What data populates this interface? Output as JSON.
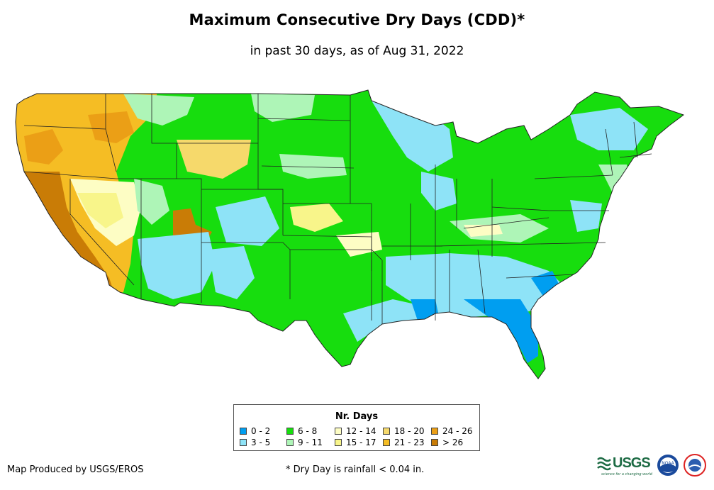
{
  "title": "Maximum Consecutive Dry Days (CDD)*",
  "subtitle": "in past 30 days, as of Aug 31, 2022",
  "legend": {
    "title": "Nr. Days",
    "items": [
      {
        "label": "0 - 2",
        "color": "#009ef0"
      },
      {
        "label": "3 - 5",
        "color": "#8ee3f7"
      },
      {
        "label": "6 - 8",
        "color": "#17dd0e"
      },
      {
        "label": "9 - 11",
        "color": "#aef5b7"
      },
      {
        "label": "12 - 14",
        "color": "#fdfdc4"
      },
      {
        "label": "15 - 17",
        "color": "#f8f58a"
      },
      {
        "label": "18 - 20",
        "color": "#f6d96b"
      },
      {
        "label": "21 - 23",
        "color": "#f5bd24"
      },
      {
        "label": "24 - 26",
        "color": "#eb9f16"
      },
      {
        "label": "> 26",
        "color": "#c97c06"
      }
    ]
  },
  "footer": {
    "producer": "Map Produced by USGS/EROS",
    "note": "* Dry Day is rainfall < 0.04 in."
  },
  "logos": {
    "usgs": "USGS",
    "usgs_tagline": "science for a changing world",
    "noaa": "NOAA"
  }
}
